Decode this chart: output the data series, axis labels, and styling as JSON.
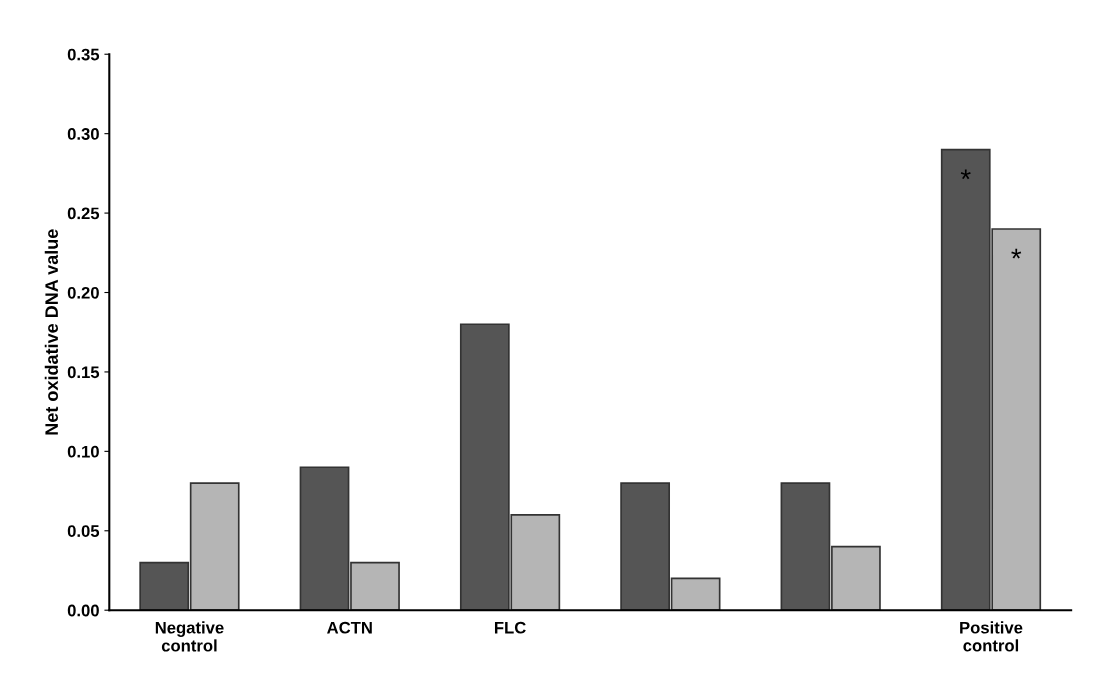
{
  "chart_data": {
    "type": "bar",
    "ylabel": "Net oxidative DNA value",
    "categories": [
      "Negative control",
      "ACTN",
      "FLC",
      null,
      null,
      "Positive control"
    ],
    "series": [
      {
        "color": "#555555",
        "values": [
          0.03,
          0.09,
          0.18,
          0.08,
          0.08,
          0.29
        ]
      },
      {
        "color": "#b5b5b5",
        "values": [
          0.08,
          0.03,
          0.06,
          0.02,
          0.04,
          0.24
        ]
      }
    ],
    "ylim": [
      0,
      0.35
    ],
    "yticks": [
      {
        "value": 0,
        "label": "0.00"
      },
      {
        "value": 0.05,
        "label": "0.05"
      },
      {
        "value": 0.1,
        "label": "0.10"
      },
      {
        "value": 0.15,
        "label": "0.15"
      },
      {
        "value": 0.2,
        "label": "0.20"
      },
      {
        "value": 0.25,
        "label": "0.25"
      },
      {
        "value": 0.3,
        "label": "0.30"
      },
      {
        "value": 0.35,
        "label": "0.35"
      }
    ],
    "grid": false,
    "annotations": [
      {
        "text": "*",
        "x": "Positive control",
        "y": 0.27
      },
      {
        "text": "*",
        "x": "Positive control",
        "y": 0.22
      }
    ]
  }
}
